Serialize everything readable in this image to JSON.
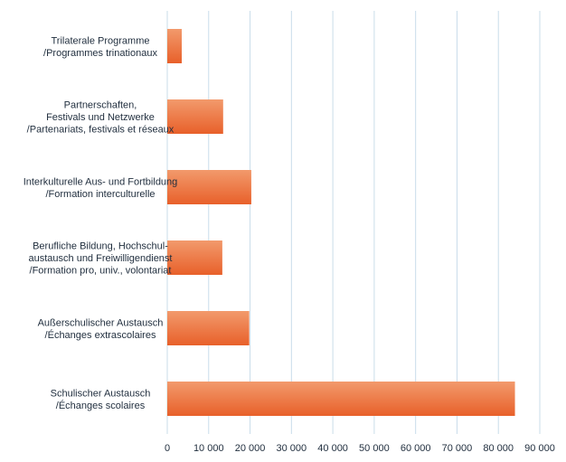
{
  "chart_data": {
    "type": "bar",
    "orientation": "horizontal",
    "title": "",
    "xlabel": "",
    "ylabel": "",
    "xlim": [
      0,
      90000
    ],
    "grid": true,
    "bar_color": "#e8602a",
    "bar_highlight_color": "#f29a6c",
    "grid_color": "#c9dcea",
    "categories": [
      [
        "Trilaterale Programme",
        "/Programmes trinationaux"
      ],
      [
        "Partnerschaften,",
        "Festivals und Netzwerke",
        "/Partenariats, festivals et réseaux"
      ],
      [
        "Interkulturelle Aus- und Fortbildung",
        "/Formation interculturelle"
      ],
      [
        "Berufliche Bildung, Hochschul-",
        "austausch und Freiwilligendienst",
        "/Formation pro, univ., volontariat"
      ],
      [
        "Außerschulischer Austausch",
        "/Échanges extrascolaires"
      ],
      [
        "Schulischer Austausch",
        "/Échanges scolaires"
      ]
    ],
    "values": [
      3500,
      13500,
      20300,
      13300,
      19800,
      84000
    ],
    "ticks": [
      0,
      10000,
      20000,
      30000,
      40000,
      50000,
      60000,
      70000,
      80000,
      90000
    ],
    "tick_labels": [
      "0",
      "10 000",
      "20 000",
      "30 000",
      "40 000",
      "50 000",
      "60 000",
      "70 000",
      "80 000",
      "90 000"
    ]
  }
}
